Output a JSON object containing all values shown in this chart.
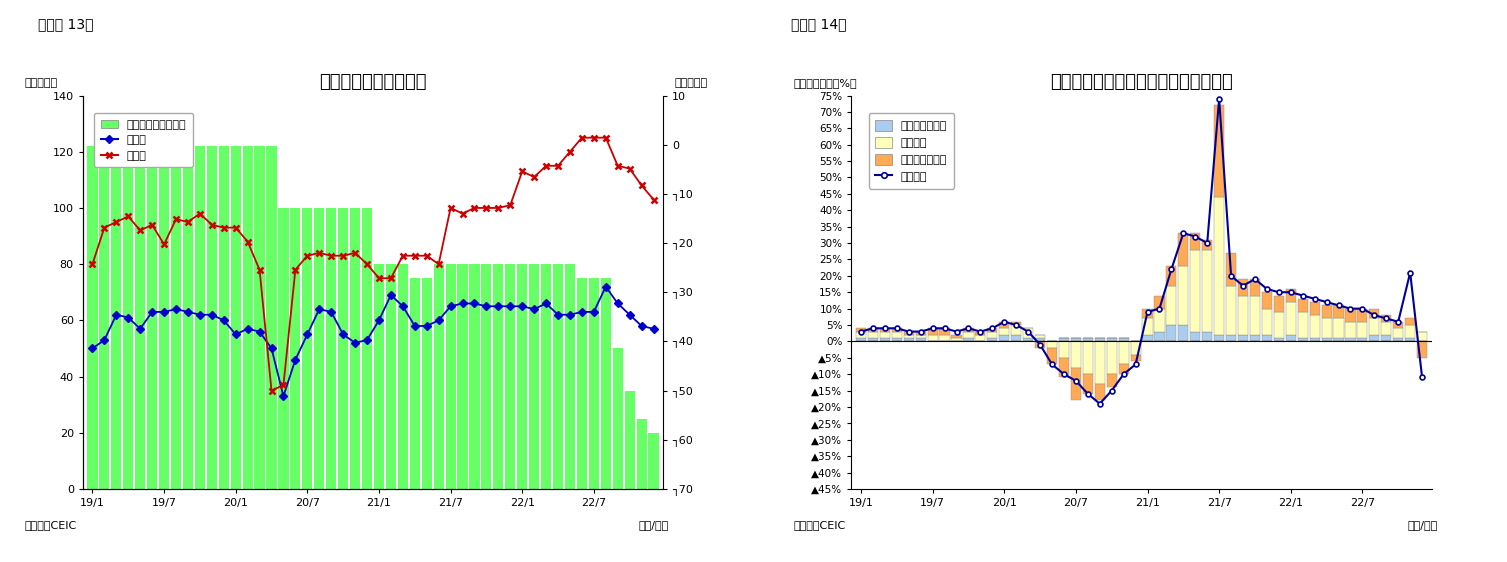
{
  "chart1": {
    "title": "フィリピンの貳易収支",
    "ylabel_left": "（億ドル）",
    "ylabel_right": "（億ドル）",
    "xlabel": "（年/月）",
    "source": "（資料）CEIC",
    "fig_label": "（図表 13）",
    "exports": [
      50,
      53,
      62,
      61,
      57,
      63,
      63,
      64,
      63,
      62,
      62,
      60,
      55,
      57,
      56,
      50,
      33,
      46,
      55,
      64,
      63,
      55,
      52,
      53,
      60,
      69,
      65,
      58,
      58,
      60,
      65,
      66,
      66,
      65,
      65,
      65,
      65,
      64,
      66,
      62,
      62,
      63,
      63,
      72,
      66,
      62,
      58,
      57
    ],
    "imports": [
      80,
      93,
      95,
      97,
      92,
      94,
      87,
      96,
      95,
      98,
      94,
      93,
      93,
      88,
      78,
      35,
      37,
      78,
      83,
      84,
      83,
      83,
      84,
      80,
      75,
      75,
      83,
      83,
      83,
      80,
      100,
      98,
      100,
      100,
      100,
      101,
      113,
      111,
      115,
      115,
      120,
      125,
      125,
      125,
      115,
      114,
      108,
      103
    ],
    "bar_heights": [
      122,
      122,
      122,
      122,
      122,
      122,
      122,
      122,
      122,
      122,
      122,
      122,
      122,
      122,
      122,
      122,
      100,
      100,
      100,
      100,
      100,
      100,
      100,
      100,
      80,
      80,
      80,
      75,
      75,
      80,
      80,
      80,
      80,
      80,
      80,
      80,
      80,
      80,
      80,
      80,
      80,
      75,
      75,
      75,
      50,
      35,
      25,
      20
    ],
    "bar_color": "#66ff66",
    "export_color": "#0000cc",
    "import_color": "#cc0000",
    "yticks_left": [
      0,
      20,
      40,
      60,
      80,
      100,
      120,
      140
    ],
    "yticks_right_vals": [
      10,
      0,
      -10,
      -20,
      -30,
      -40,
      -50,
      -60,
      -70
    ],
    "yticks_right_labels": [
      "10",
      "0",
      "┐10",
      "┐20",
      "┐30",
      "┐40",
      "┐50",
      "┐60",
      "┐70"
    ],
    "xtick_positions": [
      0,
      6,
      12,
      18,
      24,
      30,
      36,
      42
    ],
    "xtick_labels": [
      "19/1",
      "19/7",
      "20/1",
      "20/7",
      "21/1",
      "21/7",
      "22/1",
      "22/7"
    ],
    "legend_trade": "貳易収支（右目盛）",
    "legend_export": "輸出額",
    "legend_import": "輸入額"
  },
  "chart2": {
    "title": "フィリピン　輸出の伸び率（品目別）",
    "ylabel": "（前年同期比、%）",
    "xlabel": "（年/月）",
    "source": "（資料）CEIC",
    "fig_label": "（図表 14）",
    "primary": [
      1,
      1,
      1,
      1,
      1,
      1,
      0,
      0,
      0,
      1,
      0,
      1,
      2,
      2,
      1,
      1,
      0,
      1,
      1,
      1,
      1,
      1,
      1,
      0,
      2,
      3,
      5,
      5,
      3,
      3,
      2,
      2,
      2,
      2,
      2,
      1,
      2,
      1,
      1,
      1,
      1,
      1,
      1,
      2,
      2,
      1,
      1,
      0
    ],
    "electronics": [
      2,
      2,
      2,
      2,
      1,
      1,
      2,
      2,
      1,
      2,
      2,
      2,
      2,
      3,
      3,
      1,
      -2,
      -5,
      -8,
      -10,
      -13,
      -10,
      -7,
      -4,
      5,
      7,
      12,
      18,
      25,
      25,
      42,
      15,
      12,
      12,
      8,
      8,
      10,
      8,
      7,
      6,
      6,
      5,
      5,
      5,
      4,
      3,
      4,
      3
    ],
    "others": [
      1,
      1,
      1,
      1,
      1,
      1,
      2,
      2,
      1,
      1,
      1,
      1,
      2,
      1,
      0,
      -2,
      -5,
      -6,
      -10,
      -6,
      -5,
      -4,
      -3,
      -2,
      3,
      4,
      6,
      10,
      5,
      3,
      28,
      10,
      5,
      5,
      5,
      5,
      4,
      4,
      4,
      4,
      4,
      4,
      4,
      3,
      2,
      2,
      2,
      -5
    ],
    "total": [
      3,
      4,
      4,
      4,
      3,
      3,
      4,
      4,
      3,
      4,
      3,
      4,
      6,
      5,
      3,
      -1,
      -7,
      -10,
      -12,
      -16,
      -19,
      -15,
      -10,
      -7,
      9,
      10,
      22,
      33,
      32,
      30,
      74,
      20,
      17,
      19,
      16,
      15,
      15,
      14,
      13,
      12,
      11,
      10,
      10,
      8,
      7,
      6,
      21,
      -11
    ],
    "primary_color": "#aaccee",
    "electronics_color": "#ffffbb",
    "others_color": "#ffaa55",
    "total_color": "#000099",
    "xtick_positions": [
      0,
      6,
      12,
      18,
      24,
      30,
      36,
      42
    ],
    "xtick_labels": [
      "19/1",
      "19/7",
      "20/1",
      "20/7",
      "21/1",
      "21/7",
      "22/1",
      "22/7"
    ],
    "legend_primary": "一次産品・燃料",
    "legend_electronics": "電子製品",
    "legend_others": "その他製品など",
    "legend_total": "輸出合計"
  }
}
